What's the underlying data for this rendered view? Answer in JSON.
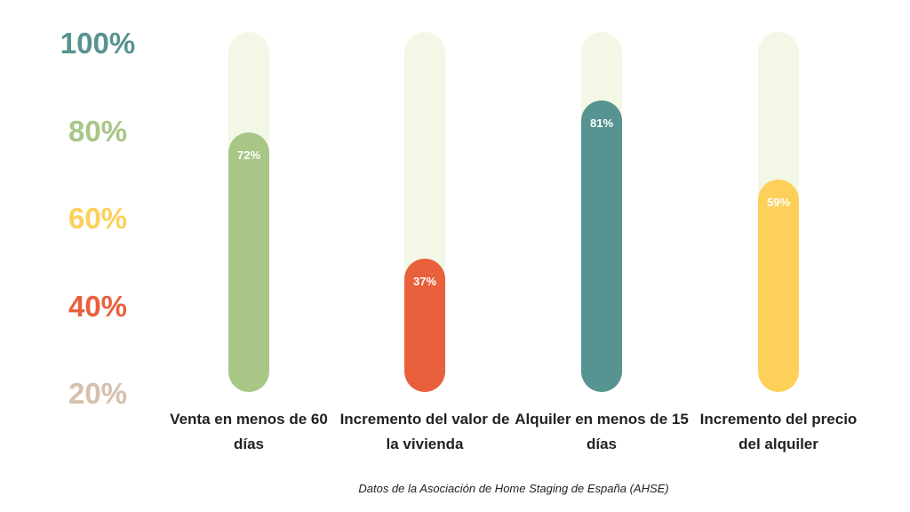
{
  "chart_data": {
    "type": "bar",
    "title": "",
    "y_ticks": [
      {
        "label": "100%",
        "color": "#579390"
      },
      {
        "label": "80%",
        "color": "#a8c686"
      },
      {
        "label": "60%",
        "color": "#fdd05a"
      },
      {
        "label": "40%",
        "color": "#e8603c"
      },
      {
        "label": "20%",
        "color": "#d5c0ad"
      }
    ],
    "categories": [
      "Venta en menos de 60 días",
      "Incremento del valor de la vivienda",
      "Alquiler en menos de 15 días",
      "Incremento del precio del alquiler"
    ],
    "values": [
      72,
      37,
      81,
      59
    ],
    "value_labels": [
      "72%",
      "37%",
      "81%",
      "59%"
    ],
    "colors": [
      "#a8c686",
      "#e8603c",
      "#579390",
      "#fdd05a"
    ],
    "track_color": "#f3f8e6",
    "ylim": [
      0,
      100
    ],
    "source": "Datos de la Asociación de Home Staging de España (AHSE)"
  }
}
